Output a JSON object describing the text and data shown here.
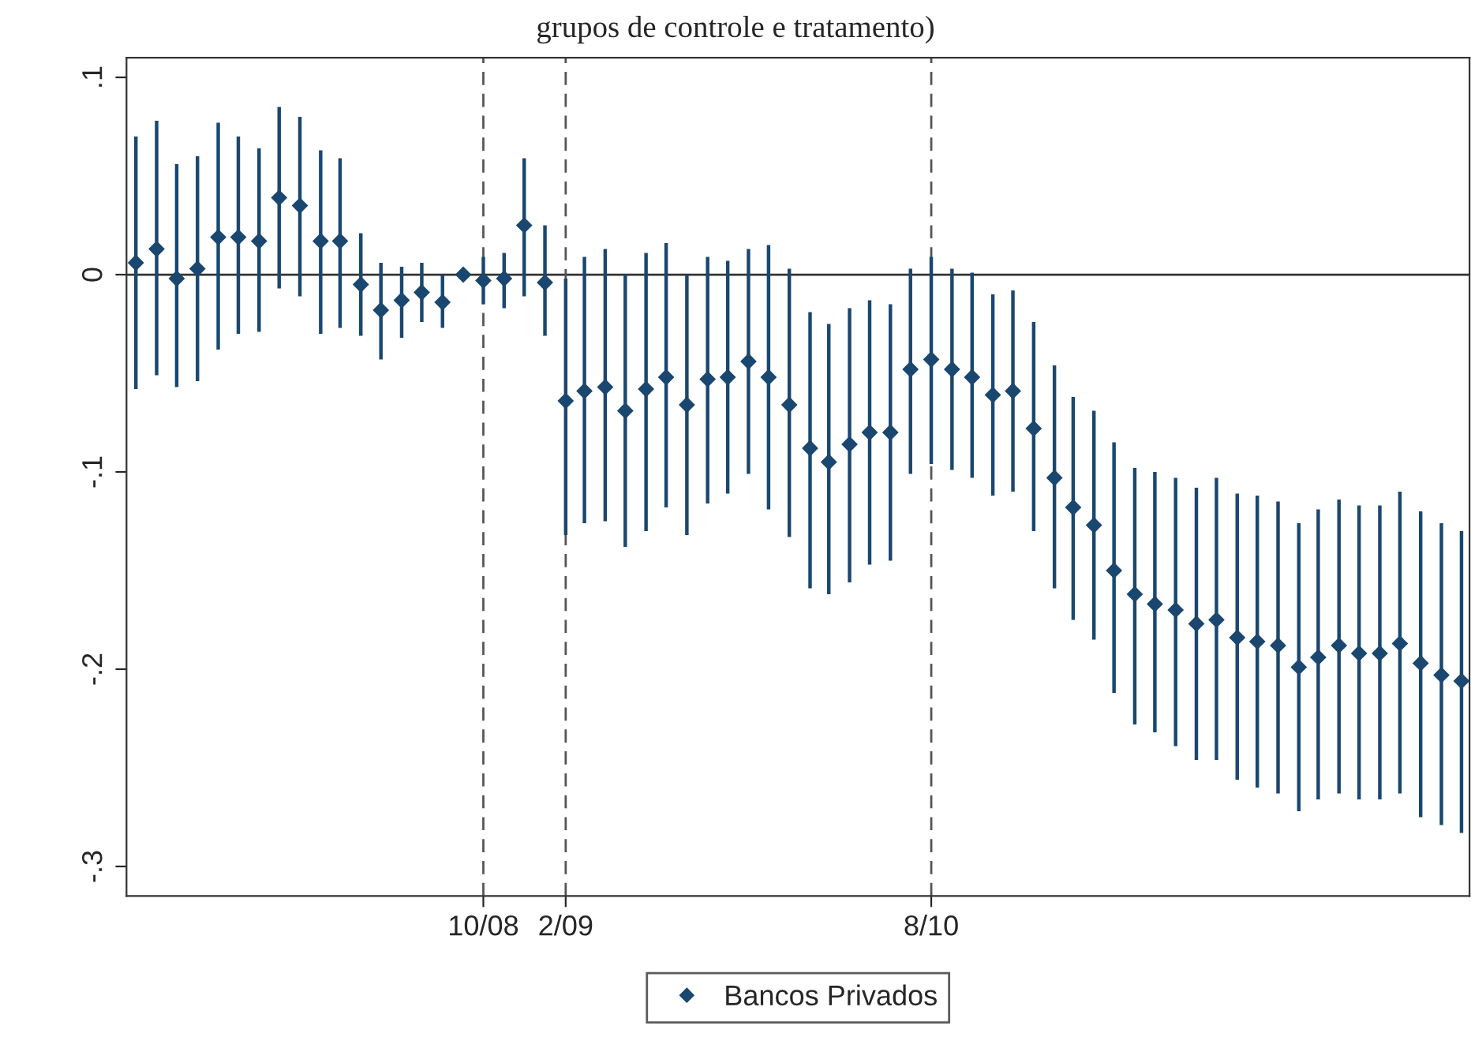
{
  "chart_data": {
    "type": "scatter",
    "title": "grupos de controle e tratamento)",
    "x": [
      "2007-05",
      "2007-06",
      "2007-07",
      "2007-08",
      "2007-09",
      "2007-10",
      "2007-11",
      "2007-12",
      "2008-01",
      "2008-02",
      "2008-03",
      "2008-04",
      "2008-05",
      "2008-06",
      "2008-07",
      "2008-08",
      "2008-09",
      "2008-10",
      "2008-11",
      "2008-12",
      "2009-01",
      "2009-02",
      "2009-03",
      "2009-04",
      "2009-05",
      "2009-06",
      "2009-07",
      "2009-08",
      "2009-09",
      "2009-10",
      "2009-11",
      "2009-12",
      "2010-01",
      "2010-02",
      "2010-03",
      "2010-04",
      "2010-05",
      "2010-06",
      "2010-07",
      "2010-08",
      "2010-09",
      "2010-10",
      "2010-11",
      "2010-12",
      "2011-01",
      "2011-02",
      "2011-03",
      "2011-04",
      "2011-05",
      "2011-06",
      "2011-07",
      "2011-08",
      "2011-09",
      "2011-10",
      "2011-11",
      "2011-12",
      "2012-01",
      "2012-02",
      "2012-03",
      "2012-04",
      "2012-05",
      "2012-06",
      "2012-07",
      "2012-08",
      "2012-09",
      "2012-10"
    ],
    "series": [
      {
        "name": "Bancos Privados",
        "color": "#1a476f",
        "values": [
          0.006,
          0.013,
          -0.002,
          0.003,
          0.019,
          0.019,
          0.017,
          0.039,
          0.035,
          0.017,
          0.017,
          -0.005,
          -0.018,
          -0.013,
          -0.009,
          -0.014,
          0.0,
          -0.003,
          -0.002,
          0.025,
          -0.004,
          -0.064,
          -0.059,
          -0.057,
          -0.069,
          -0.058,
          -0.052,
          -0.066,
          -0.053,
          -0.052,
          -0.044,
          -0.052,
          -0.066,
          -0.088,
          -0.095,
          -0.086,
          -0.08,
          -0.08,
          -0.048,
          -0.043,
          -0.048,
          -0.052,
          -0.061,
          -0.059,
          -0.078,
          -0.103,
          -0.118,
          -0.127,
          -0.15,
          -0.162,
          -0.167,
          -0.17,
          -0.177,
          -0.175,
          -0.184,
          -0.186,
          -0.188,
          -0.199,
          -0.194,
          -0.188,
          -0.192,
          -0.192,
          -0.187,
          -0.197,
          -0.203,
          -0.206
        ],
        "errors": [
          [
            -0.058,
            0.07
          ],
          [
            -0.051,
            0.078
          ],
          [
            -0.057,
            0.056
          ],
          [
            -0.054,
            0.06
          ],
          [
            -0.038,
            0.077
          ],
          [
            -0.03,
            0.07
          ],
          [
            -0.029,
            0.064
          ],
          [
            -0.007,
            0.085
          ],
          [
            -0.011,
            0.08
          ],
          [
            -0.03,
            0.063
          ],
          [
            -0.027,
            0.059
          ],
          [
            -0.031,
            0.021
          ],
          [
            -0.043,
            0.006
          ],
          [
            -0.032,
            0.004
          ],
          [
            -0.024,
            0.006
          ],
          [
            -0.027,
            0.0
          ],
          null,
          [
            -0.015,
            0.009
          ],
          [
            -0.017,
            0.011
          ],
          [
            -0.011,
            0.059
          ],
          [
            -0.031,
            0.025
          ],
          [
            -0.132,
            -0.002
          ],
          [
            -0.126,
            0.009
          ],
          [
            -0.125,
            0.013
          ],
          [
            -0.138,
            0.0
          ],
          [
            -0.13,
            0.011
          ],
          [
            -0.118,
            0.016
          ],
          [
            -0.132,
            0.0
          ],
          [
            -0.116,
            0.009
          ],
          [
            -0.111,
            0.007
          ],
          [
            -0.101,
            0.013
          ],
          [
            -0.119,
            0.015
          ],
          [
            -0.133,
            0.003
          ],
          [
            -0.159,
            -0.019
          ],
          [
            -0.162,
            -0.025
          ],
          [
            -0.156,
            -0.017
          ],
          [
            -0.147,
            -0.013
          ],
          [
            -0.145,
            -0.015
          ],
          [
            -0.101,
            0.003
          ],
          [
            -0.096,
            0.009
          ],
          [
            -0.099,
            0.003
          ],
          [
            -0.103,
            0.001
          ],
          [
            -0.112,
            -0.01
          ],
          [
            -0.11,
            -0.008
          ],
          [
            -0.13,
            -0.024
          ],
          [
            -0.159,
            -0.046
          ],
          [
            -0.175,
            -0.062
          ],
          [
            -0.185,
            -0.069
          ],
          [
            -0.212,
            -0.085
          ],
          [
            -0.228,
            -0.098
          ],
          [
            -0.232,
            -0.1
          ],
          [
            -0.239,
            -0.103
          ],
          [
            -0.246,
            -0.108
          ],
          [
            -0.246,
            -0.103
          ],
          [
            -0.256,
            -0.111
          ],
          [
            -0.26,
            -0.112
          ],
          [
            -0.263,
            -0.115
          ],
          [
            -0.272,
            -0.126
          ],
          [
            -0.266,
            -0.119
          ],
          [
            -0.263,
            -0.114
          ],
          [
            -0.266,
            -0.117
          ],
          [
            -0.266,
            -0.117
          ],
          [
            -0.263,
            -0.11
          ],
          [
            -0.275,
            -0.12
          ],
          [
            -0.279,
            -0.126
          ],
          [
            -0.283,
            -0.13
          ]
        ]
      }
    ],
    "xlim": [
      "2007-04-17",
      "2012-10-13"
    ],
    "ylim": [
      -0.315,
      0.11
    ],
    "xticks": [
      {
        "value": "2008-10",
        "label": "10/08"
      },
      {
        "value": "2009-02",
        "label": "2/09"
      },
      {
        "value": "2010-08",
        "label": "8/10"
      }
    ],
    "yticks": [
      {
        "value": -0.3,
        "label": "-.3"
      },
      {
        "value": -0.2,
        "label": "-.2"
      },
      {
        "value": -0.1,
        "label": "-.1"
      },
      {
        "value": 0,
        "label": "0"
      },
      {
        "value": 0.1,
        "label": ".1"
      }
    ],
    "ref_lines": [
      {
        "axis": "y",
        "value": 0,
        "color": "#333333",
        "line_style": "solid"
      },
      {
        "axis": "x",
        "value": "2008-10",
        "color": "#555555",
        "line_style": "dashed"
      },
      {
        "axis": "x",
        "value": "2009-02",
        "color": "#555555",
        "line_style": "dashed"
      },
      {
        "axis": "x",
        "value": "2010-08",
        "color": "#555555",
        "line_style": "dashed"
      }
    ],
    "marker": "diamond",
    "grid": false,
    "legend": "bottom"
  }
}
